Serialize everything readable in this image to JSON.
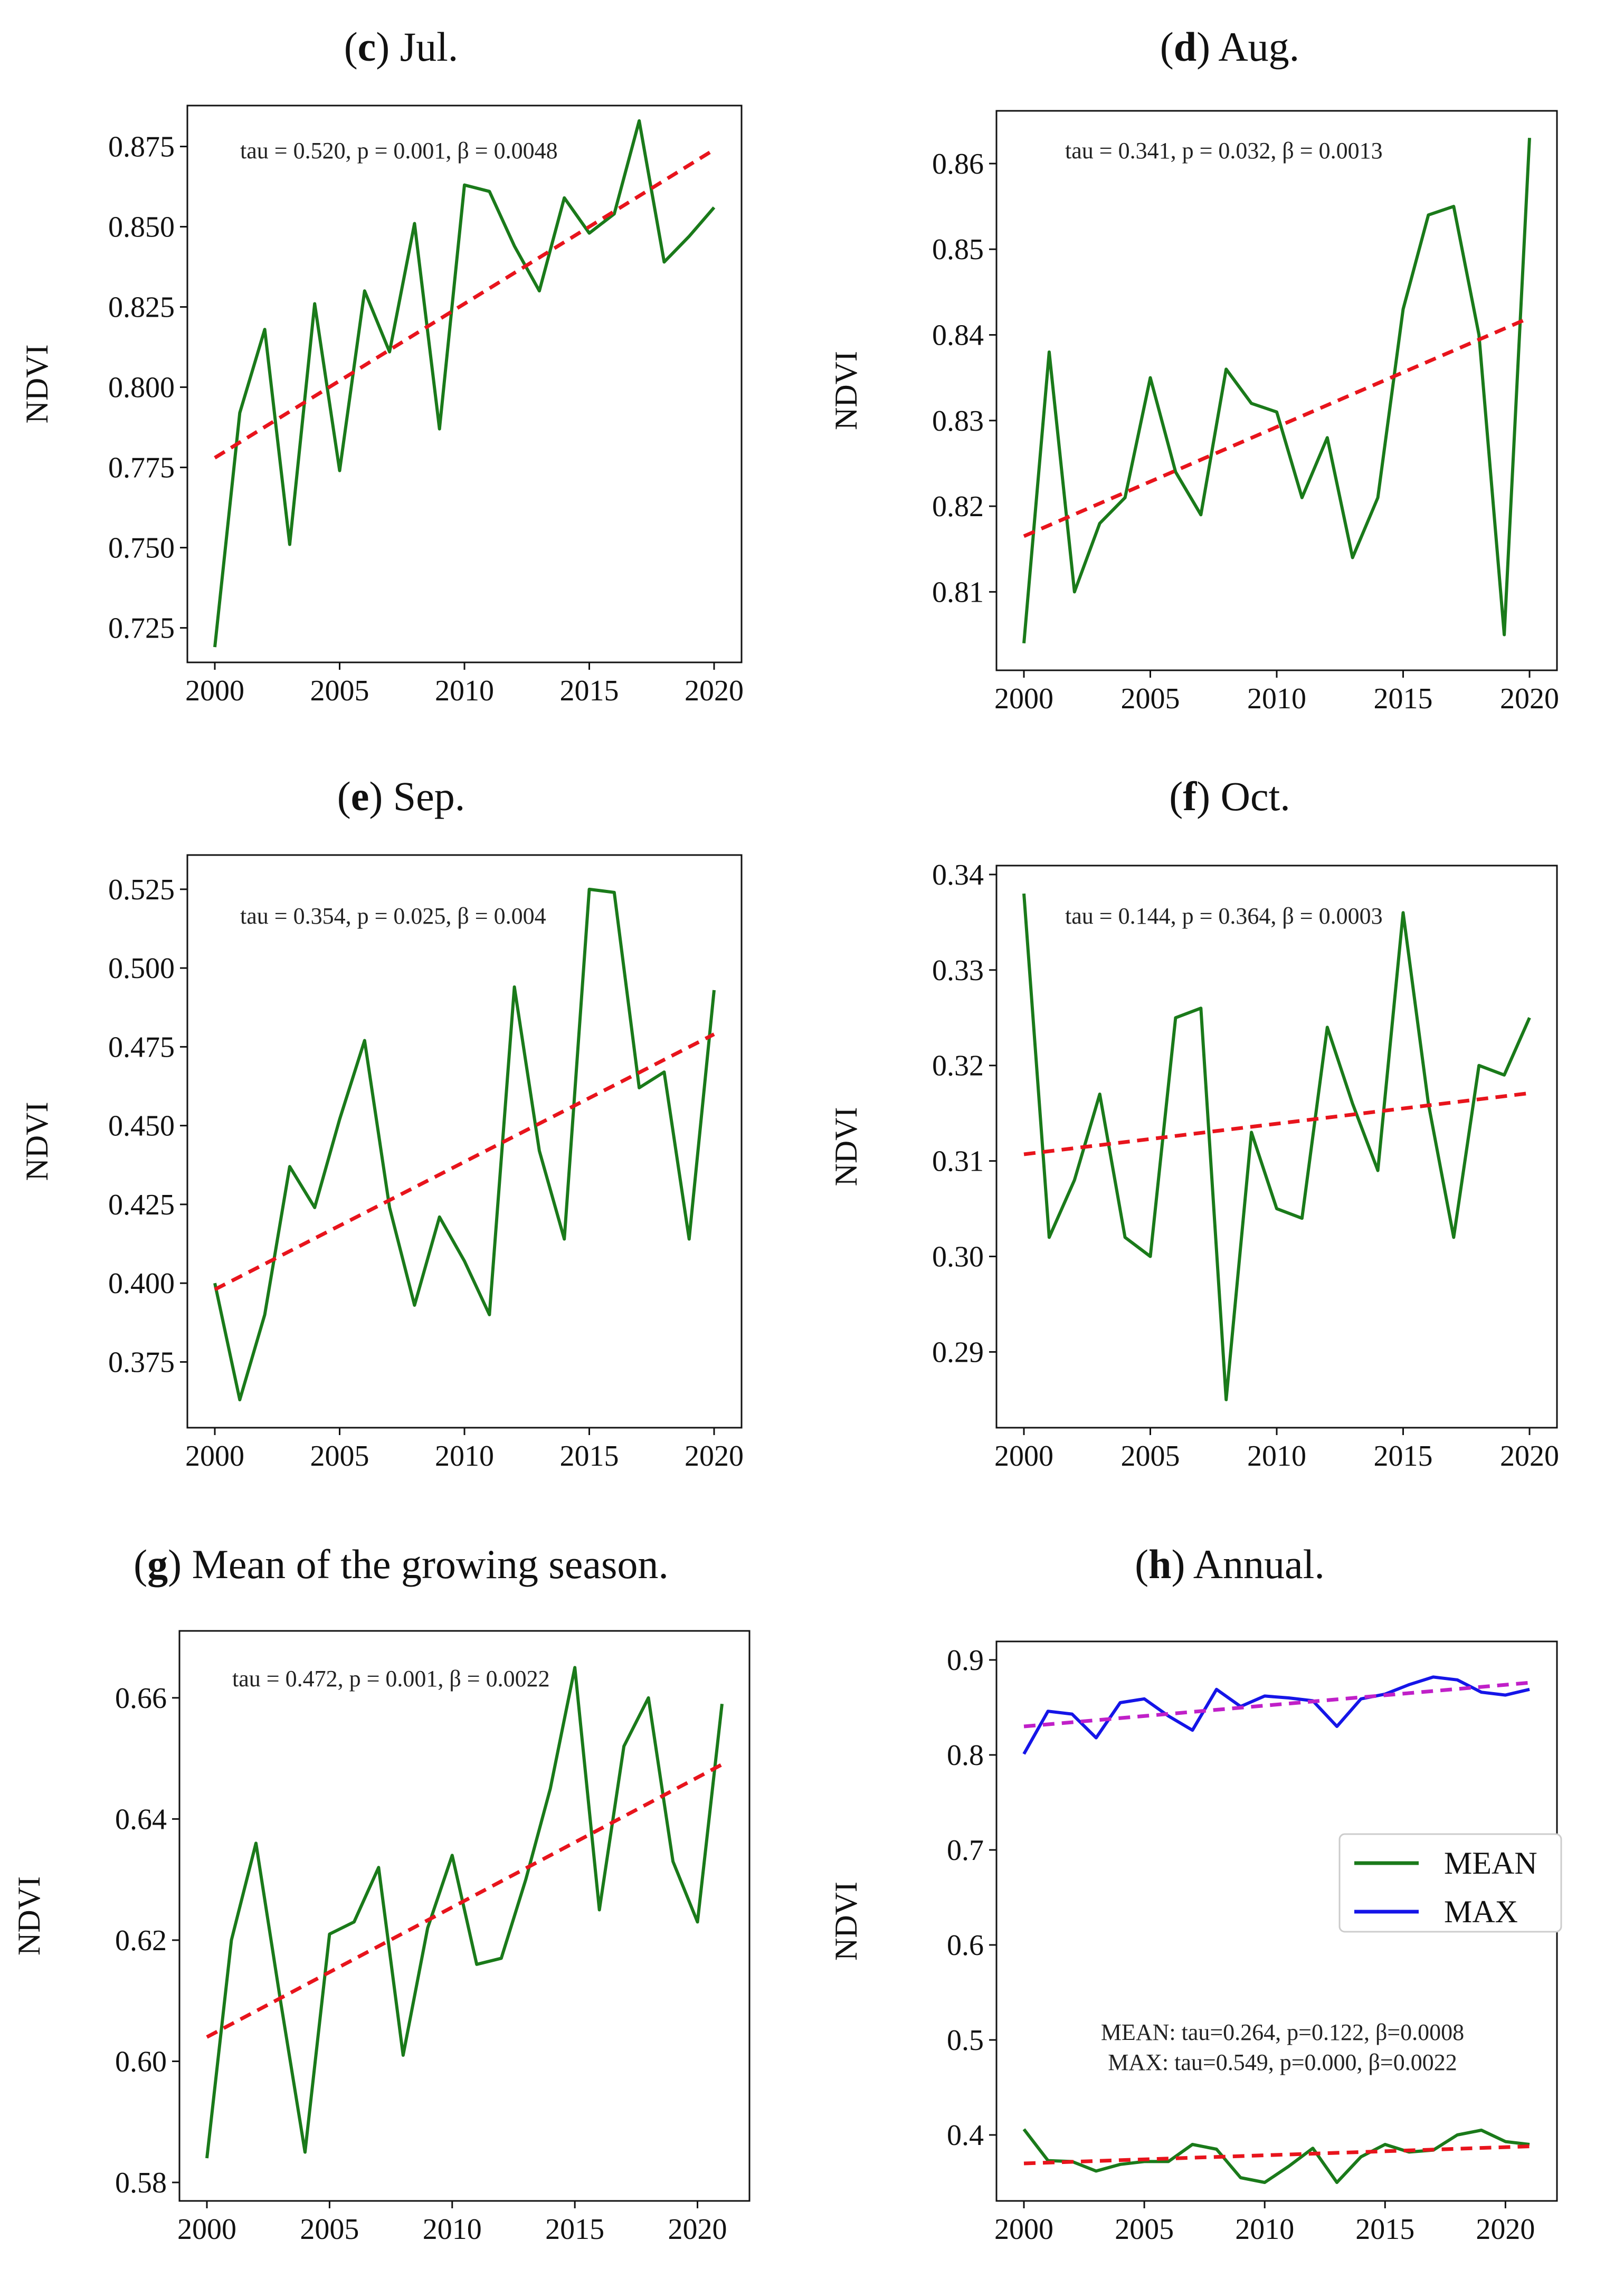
{
  "colors": {
    "green": "#1a7a1a",
    "blue": "#1515e8",
    "red": "#e8141c",
    "magenta": "#c020c8"
  },
  "chart_data": [
    {
      "panel": "c",
      "title": "Jul.",
      "type": "line",
      "xlabel": "",
      "ylabel": "NDVI",
      "xlim": [
        2000,
        2020
      ],
      "ylim": [
        0.72,
        0.882
      ],
      "xticks": [
        2000,
        2005,
        2010,
        2015,
        2020
      ],
      "yticks": [
        0.725,
        0.75,
        0.775,
        0.8,
        0.825,
        0.85,
        0.875
      ],
      "ytick_labels": [
        "0.725",
        "0.750",
        "0.775",
        "0.800",
        "0.825",
        "0.850",
        "0.875"
      ],
      "annotation": "tau = 0.520, p = 0.001, β = 0.0048",
      "x": [
        2000,
        2001,
        2002,
        2003,
        2004,
        2005,
        2006,
        2007,
        2008,
        2009,
        2010,
        2011,
        2012,
        2013,
        2014,
        2015,
        2016,
        2017,
        2018,
        2019,
        2020
      ],
      "series": [
        {
          "name": "NDVI",
          "color": "green",
          "style": "solid",
          "values": [
            0.719,
            0.792,
            0.818,
            0.751,
            0.826,
            0.774,
            0.83,
            0.811,
            0.851,
            0.787,
            0.863,
            0.861,
            0.844,
            0.83,
            0.859,
            0.848,
            0.854,
            0.883,
            0.839,
            0.847,
            0.856
          ]
        },
        {
          "name": "trend",
          "color": "red",
          "style": "dashed",
          "x": [
            2000,
            2020
          ],
          "values": [
            0.778,
            0.874
          ]
        }
      ]
    },
    {
      "panel": "d",
      "title": "Aug.",
      "type": "line",
      "xlabel": "",
      "ylabel": "NDVI",
      "xlim": [
        2000,
        2020
      ],
      "ylim": [
        0.803,
        0.864
      ],
      "xticks": [
        2000,
        2005,
        2010,
        2015,
        2020
      ],
      "yticks": [
        0.81,
        0.82,
        0.83,
        0.84,
        0.85,
        0.86
      ],
      "ytick_labels": [
        "0.81",
        "0.82",
        "0.83",
        "0.84",
        "0.85",
        "0.86"
      ],
      "annotation": "tau = 0.341, p = 0.032, β = 0.0013",
      "x": [
        2000,
        2001,
        2002,
        2003,
        2004,
        2005,
        2006,
        2007,
        2008,
        2009,
        2010,
        2011,
        2012,
        2013,
        2014,
        2015,
        2016,
        2017,
        2018,
        2019,
        2020
      ],
      "series": [
        {
          "name": "NDVI",
          "color": "green",
          "style": "solid",
          "values": [
            0.804,
            0.838,
            0.81,
            0.818,
            0.821,
            0.835,
            0.824,
            0.819,
            0.836,
            0.832,
            0.831,
            0.821,
            0.828,
            0.814,
            0.821,
            0.843,
            0.854,
            0.855,
            0.84,
            0.805,
            0.863
          ]
        },
        {
          "name": "trend",
          "color": "red",
          "style": "dashed",
          "x": [
            2000,
            2020
          ],
          "values": [
            0.8165,
            0.842
          ]
        }
      ]
    },
    {
      "panel": "e",
      "title": "Sep.",
      "type": "line",
      "xlabel": "",
      "ylabel": "NDVI",
      "xlim": [
        2000,
        2020
      ],
      "ylim": [
        0.36,
        0.53
      ],
      "xticks": [
        2000,
        2005,
        2010,
        2015,
        2020
      ],
      "yticks": [
        0.375,
        0.4,
        0.425,
        0.45,
        0.475,
        0.5,
        0.525
      ],
      "ytick_labels": [
        "0.375",
        "0.400",
        "0.425",
        "0.450",
        "0.475",
        "0.500",
        "0.525"
      ],
      "annotation": "tau = 0.354, p = 0.025, β = 0.004",
      "x": [
        2000,
        2001,
        2002,
        2003,
        2004,
        2005,
        2006,
        2007,
        2008,
        2009,
        2010,
        2011,
        2012,
        2013,
        2014,
        2015,
        2016,
        2017,
        2018,
        2019,
        2020
      ],
      "series": [
        {
          "name": "NDVI",
          "color": "green",
          "style": "solid",
          "values": [
            0.4,
            0.363,
            0.39,
            0.437,
            0.424,
            0.452,
            0.477,
            0.424,
            0.393,
            0.421,
            0.407,
            0.39,
            0.494,
            0.442,
            0.414,
            0.525,
            0.524,
            0.462,
            0.467,
            0.414,
            0.493
          ]
        },
        {
          "name": "trend",
          "color": "red",
          "style": "dashed",
          "x": [
            2000,
            2020
          ],
          "values": [
            0.398,
            0.479
          ]
        }
      ]
    },
    {
      "panel": "f",
      "title": "Oct.",
      "type": "line",
      "xlabel": "",
      "ylabel": "NDVI",
      "xlim": [
        2000,
        2020
      ],
      "ylim": [
        0.284,
        0.339
      ],
      "xticks": [
        2000,
        2005,
        2010,
        2015,
        2020
      ],
      "yticks": [
        0.29,
        0.3,
        0.31,
        0.32,
        0.33,
        0.34
      ],
      "ytick_labels": [
        "0.29",
        "0.30",
        "0.31",
        "0.32",
        "0.33",
        "0.34"
      ],
      "annotation": "tau = 0.144, p = 0.364, β = 0.0003",
      "x": [
        2000,
        2001,
        2002,
        2003,
        2004,
        2005,
        2006,
        2007,
        2008,
        2009,
        2010,
        2011,
        2012,
        2013,
        2014,
        2015,
        2016,
        2017,
        2018,
        2019,
        2020
      ],
      "series": [
        {
          "name": "NDVI",
          "color": "green",
          "style": "solid",
          "values": [
            0.338,
            0.302,
            0.308,
            0.317,
            0.302,
            0.3,
            0.325,
            0.326,
            0.285,
            0.313,
            0.305,
            0.304,
            0.324,
            0.316,
            0.309,
            0.336,
            0.316,
            0.302,
            0.32,
            0.319,
            0.325
          ]
        },
        {
          "name": "trend",
          "color": "red",
          "style": "dashed",
          "x": [
            2000,
            2020
          ],
          "values": [
            0.3107,
            0.3171
          ]
        }
      ]
    },
    {
      "panel": "g",
      "title": "Mean of the growing season.",
      "type": "line",
      "xlabel": "",
      "ylabel": "NDVI",
      "xlim": [
        2000,
        2021
      ],
      "ylim": [
        0.58,
        0.668
      ],
      "xticks": [
        2000,
        2005,
        2010,
        2015,
        2020
      ],
      "yticks": [
        0.58,
        0.6,
        0.62,
        0.64,
        0.66
      ],
      "ytick_labels": [
        "0.58",
        "0.60",
        "0.62",
        "0.64",
        "0.66"
      ],
      "annotation": "tau = 0.472, p = 0.001, β = 0.0022",
      "x": [
        2000,
        2001,
        2002,
        2003,
        2004,
        2005,
        2006,
        2007,
        2008,
        2009,
        2010,
        2011,
        2012,
        2013,
        2014,
        2015,
        2016,
        2017,
        2018,
        2019,
        2020,
        2021
      ],
      "series": [
        {
          "name": "NDVI",
          "color": "green",
          "style": "solid",
          "values": [
            0.584,
            0.62,
            0.636,
            0.61,
            0.585,
            0.621,
            0.623,
            0.632,
            0.601,
            0.622,
            0.634,
            0.616,
            0.617,
            0.63,
            0.645,
            0.665,
            0.625,
            0.652,
            0.66,
            0.633,
            0.623,
            0.659
          ]
        },
        {
          "name": "trend",
          "color": "red",
          "style": "dashed",
          "x": [
            2000,
            2021
          ],
          "values": [
            0.604,
            0.649
          ]
        }
      ]
    },
    {
      "panel": "h",
      "title": "Annual.",
      "type": "line",
      "xlabel": "",
      "ylabel": "NDVI",
      "xlim": [
        2000,
        2021
      ],
      "ylim": [
        0.35,
        0.9
      ],
      "xticks": [
        2000,
        2005,
        2010,
        2015,
        2020
      ],
      "yticks": [
        0.4,
        0.5,
        0.6,
        0.7,
        0.8,
        0.9
      ],
      "ytick_labels": [
        "0.4",
        "0.5",
        "0.6",
        "0.7",
        "0.8",
        "0.9"
      ],
      "annotations": [
        "MEAN: tau=0.264, p=0.122, β=0.0008",
        "MAX: tau=0.549, p=0.000, β=0.0022"
      ],
      "legend": {
        "position": "center-right",
        "entries": [
          "MEAN",
          "MAX"
        ]
      },
      "x": [
        2000,
        2001,
        2002,
        2003,
        2004,
        2005,
        2006,
        2007,
        2008,
        2009,
        2010,
        2011,
        2012,
        2013,
        2014,
        2015,
        2016,
        2017,
        2018,
        2019,
        2020,
        2021
      ],
      "series": [
        {
          "name": "MEAN",
          "color": "green",
          "style": "solid",
          "values": [
            0.406,
            0.373,
            0.372,
            0.362,
            0.369,
            0.372,
            0.372,
            0.39,
            0.385,
            0.355,
            0.35,
            0.367,
            0.386,
            0.35,
            0.377,
            0.39,
            0.382,
            0.384,
            0.4,
            0.405,
            0.393,
            0.39
          ]
        },
        {
          "name": "MAX",
          "color": "blue",
          "style": "solid",
          "values": [
            0.801,
            0.846,
            0.843,
            0.818,
            0.855,
            0.859,
            0.841,
            0.826,
            0.869,
            0.851,
            0.862,
            0.86,
            0.857,
            0.83,
            0.859,
            0.864,
            0.874,
            0.882,
            0.879,
            0.866,
            0.863,
            0.869
          ]
        },
        {
          "name": "MEAN trend",
          "color": "red",
          "style": "dashed",
          "x": [
            2000,
            2021
          ],
          "values": [
            0.37,
            0.388
          ]
        },
        {
          "name": "MAX trend",
          "color": "magenta",
          "style": "dashed",
          "x": [
            2000,
            2021
          ],
          "values": [
            0.83,
            0.876
          ]
        }
      ]
    }
  ]
}
